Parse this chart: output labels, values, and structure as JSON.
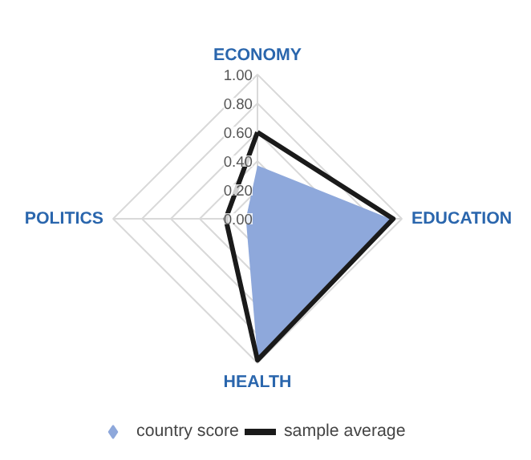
{
  "chart_data": {
    "type": "radar",
    "categories": [
      "ECONOMY",
      "EDUCATION",
      "HEALTH",
      "POLITICS"
    ],
    "series": [
      {
        "name": "country score",
        "color": "#8ea8db",
        "values": [
          0.37,
          0.92,
          0.96,
          0.08
        ],
        "marker": "diamond"
      },
      {
        "name": "sample average",
        "color": "#1a1a1a",
        "values": [
          0.6,
          0.94,
          0.98,
          0.22
        ],
        "marker": "none"
      }
    ],
    "ylim": [
      0,
      1
    ],
    "yticks": [
      {
        "value": 0,
        "label": "0.00"
      },
      {
        "value": 0.2,
        "label": "0.20"
      },
      {
        "value": 0.4,
        "label": "0.40"
      },
      {
        "value": 0.6,
        "label": "0.60"
      },
      {
        "value": 0.8,
        "label": "0.80"
      },
      {
        "value": 1,
        "label": "1.00"
      }
    ],
    "grid": true,
    "legend": "bottom"
  }
}
